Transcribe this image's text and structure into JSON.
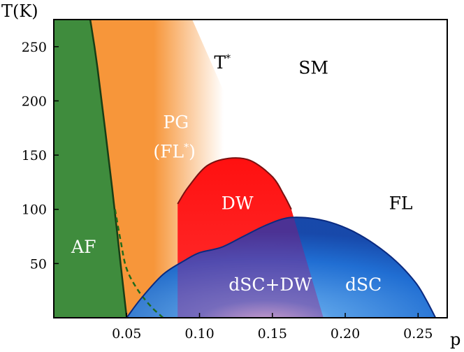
{
  "chart_data": {
    "type": "phase-diagram",
    "title": "",
    "xlabel": "p",
    "ylabel": "T(K)",
    "xlim": [
      0.0,
      0.27
    ],
    "ylim": [
      0,
      275
    ],
    "x_ticks": [
      0.05,
      0.1,
      0.15,
      0.2,
      0.25
    ],
    "x_tick_labels": [
      "0.05",
      "0.10",
      "0.15",
      "0.20",
      "0.25"
    ],
    "y_ticks": [
      50,
      100,
      150,
      200,
      250
    ],
    "y_tick_labels": [
      "50",
      "100",
      "150",
      "200",
      "250"
    ],
    "regions": [
      {
        "key": "af",
        "label": "AF",
        "color": "#3f8c3d",
        "label_at": [
          0.012,
          60
        ]
      },
      {
        "key": "pg",
        "label": "PG",
        "label2": "(FL",
        "label2_sup": "*",
        "label2_end": ")",
        "color": "#f7963a",
        "label_at": [
          0.075,
          175
        ]
      },
      {
        "key": "dw",
        "label": "DW",
        "color": "#ff1a1a",
        "label_at": [
          0.115,
          100
        ]
      },
      {
        "key": "dscdw",
        "label": "dSC+DW",
        "color": "#6a3fa0",
        "label_at": [
          0.12,
          25
        ]
      },
      {
        "key": "dsc",
        "label": "dSC",
        "color": "#1060cc",
        "label_at": [
          0.2,
          25
        ]
      },
      {
        "key": "sm",
        "label": "SM",
        "color": "#000000",
        "label_at": [
          0.168,
          225
        ]
      },
      {
        "key": "fl",
        "label": "FL",
        "color": "#000000",
        "label_at": [
          0.23,
          100
        ]
      }
    ],
    "tstar": {
      "label": "T",
      "sup": "*",
      "label_at": [
        0.11,
        230
      ]
    },
    "boundaries": {
      "af": [
        [
          0.0,
          275
        ],
        [
          0.025,
          275
        ],
        [
          0.03,
          230
        ],
        [
          0.04,
          120
        ],
        [
          0.045,
          60
        ],
        [
          0.05,
          0
        ],
        [
          0.0,
          0
        ]
      ],
      "af_dashed": [
        [
          0.042,
          100
        ],
        [
          0.046,
          70
        ],
        [
          0.05,
          45
        ],
        [
          0.058,
          25
        ],
        [
          0.067,
          10
        ],
        [
          0.075,
          0
        ]
      ],
      "pg_upper": [
        [
          0.025,
          275
        ],
        [
          0.095,
          275
        ],
        [
          0.185,
          0
        ]
      ],
      "dw_dome": [
        [
          0.085,
          105
        ],
        [
          0.092,
          120
        ],
        [
          0.105,
          140
        ],
        [
          0.12,
          147
        ],
        [
          0.135,
          145
        ],
        [
          0.15,
          130
        ],
        [
          0.158,
          113
        ],
        [
          0.163,
          100
        ]
      ],
      "dsc_dome": [
        [
          0.05,
          0
        ],
        [
          0.06,
          18
        ],
        [
          0.075,
          40
        ],
        [
          0.09,
          53
        ],
        [
          0.1,
          60
        ],
        [
          0.115,
          65
        ],
        [
          0.13,
          75
        ],
        [
          0.145,
          85
        ],
        [
          0.16,
          92
        ],
        [
          0.175,
          92
        ],
        [
          0.19,
          88
        ],
        [
          0.205,
          80
        ],
        [
          0.22,
          68
        ],
        [
          0.235,
          52
        ],
        [
          0.248,
          33
        ],
        [
          0.255,
          18
        ],
        [
          0.262,
          0
        ]
      ]
    }
  }
}
